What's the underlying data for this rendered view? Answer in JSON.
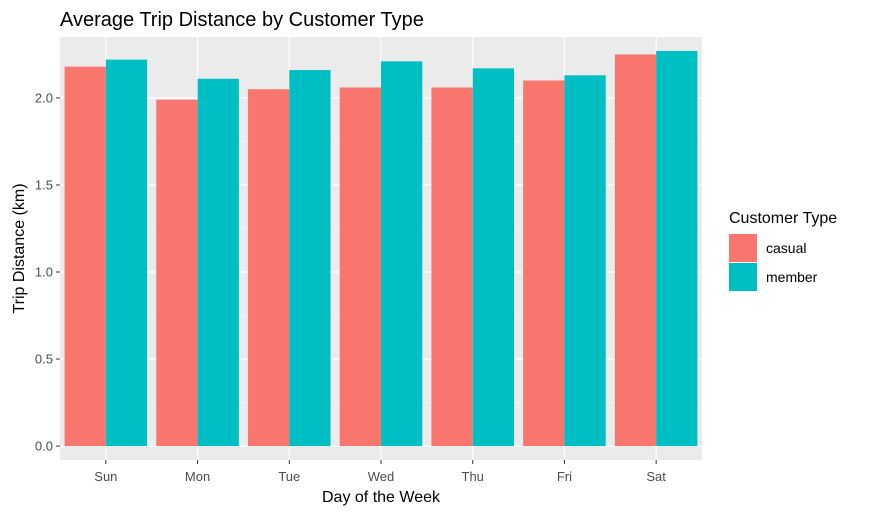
{
  "chart_data": {
    "type": "bar",
    "title": "Average Trip Distance by Customer Type",
    "xlabel": "Day of the Week",
    "ylabel": "Trip Distance (km)",
    "categories": [
      "Sun",
      "Mon",
      "Tue",
      "Wed",
      "Thu",
      "Fri",
      "Sat"
    ],
    "series": [
      {
        "name": "casual",
        "color": "#F8766D",
        "values": [
          2.18,
          1.99,
          2.05,
          2.06,
          2.06,
          2.1,
          2.25
        ]
      },
      {
        "name": "member",
        "color": "#00BFC4",
        "values": [
          2.22,
          2.11,
          2.16,
          2.21,
          2.17,
          2.13,
          2.27
        ]
      }
    ],
    "ylim": [
      -0.08,
      2.35
    ],
    "yticks": [
      0.0,
      0.5,
      1.0,
      1.5,
      2.0
    ],
    "ytick_labels": [
      "0.0",
      "0.5",
      "1.0",
      "1.5",
      "2.0"
    ],
    "grid": true,
    "legend": {
      "title": "Customer Type",
      "position": "right"
    },
    "colors": {
      "panel_background": "#EBEBEB",
      "grid_major": "#FFFFFF",
      "grid_minor": "#F5F5F5"
    }
  }
}
